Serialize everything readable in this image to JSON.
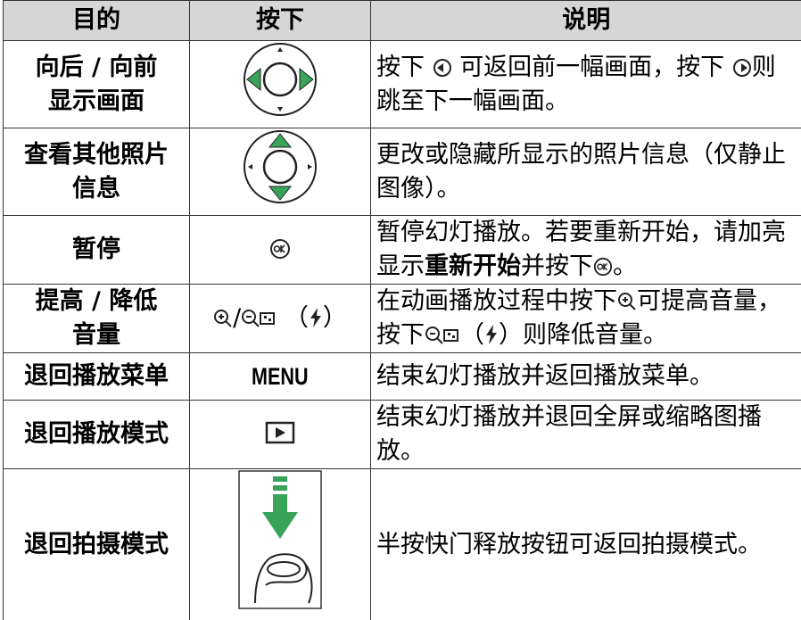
{
  "table": {
    "header": [
      "目的",
      "按下",
      "说明"
    ],
    "rows": [
      {
        "purpose": [
          "向后 / 向前",
          "显示画面"
        ],
        "description": [
          "按下",
          "可返回前一幅画面，按下",
          "则跳至下一幅画面。"
        ]
      },
      {
        "purpose": [
          "查看其他照片",
          "信息"
        ],
        "description": [
          "更改或隐藏所显示的照片信息（仅静止图像）。"
        ]
      },
      {
        "purpose": [
          "暂停"
        ],
        "description": [
          "暂停幻灯播放。若要重新开始，请加亮显示",
          "重新开始",
          "并按下",
          "。"
        ]
      },
      {
        "purpose": [
          "提高 / 降低",
          "音量"
        ],
        "button": [
          "/",
          "（",
          "）"
        ],
        "description": [
          "在动画播放过程中按下",
          "可提高音量，按下",
          "（",
          "）则降低音量。"
        ]
      },
      {
        "purpose": [
          "退回播放菜单"
        ],
        "button": [
          "MENU"
        ],
        "description": [
          "结束幻灯播放并返回播放菜单。"
        ]
      },
      {
        "purpose": [
          "退回播放模式"
        ],
        "description": [
          "结束幻灯播放并退回全屏或缩略图播放。"
        ]
      },
      {
        "purpose": [
          "退回拍摄模式"
        ],
        "description": [
          "半按快门释放按钮可返回拍摄模式。"
        ]
      }
    ]
  }
}
